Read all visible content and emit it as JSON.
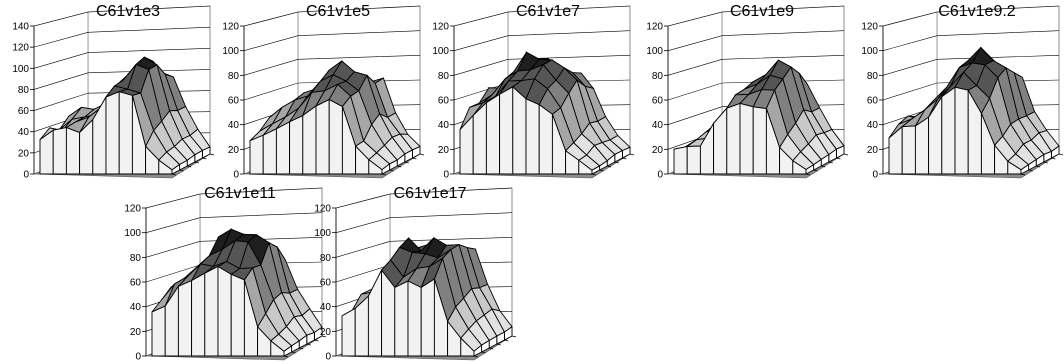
{
  "chart_data": [
    {
      "type": "surface",
      "title": "C61v1e3",
      "ylim": [
        0,
        140
      ],
      "yticks": [
        0,
        20,
        40,
        60,
        80,
        100,
        120,
        140
      ],
      "seed": 3,
      "profile": [
        52,
        60,
        64,
        72,
        90,
        112,
        120,
        114,
        96,
        74,
        60
      ]
    },
    {
      "type": "surface",
      "title": "C61v1e5",
      "ylim": [
        0,
        120
      ],
      "yticks": [
        0,
        20,
        40,
        60,
        80,
        100,
        120
      ],
      "seed": 5,
      "profile": [
        48,
        58,
        64,
        72,
        86,
        98,
        96,
        86,
        72,
        62,
        54
      ]
    },
    {
      "type": "surface",
      "title": "C61v1e7",
      "ylim": [
        0,
        120
      ],
      "yticks": [
        0,
        20,
        40,
        60,
        80,
        100,
        120
      ],
      "seed": 7,
      "profile": [
        68,
        80,
        92,
        104,
        108,
        104,
        94,
        80,
        66,
        56,
        48
      ]
    },
    {
      "type": "surface",
      "title": "C61v1e9",
      "ylim": [
        0,
        120
      ],
      "yticks": [
        0,
        20,
        40,
        60,
        80,
        100,
        120
      ],
      "seed": 9,
      "profile": [
        28,
        34,
        46,
        60,
        82,
        94,
        96,
        92,
        82,
        70,
        58
      ]
    },
    {
      "type": "surface",
      "title": "C61v1e9.2",
      "ylim": [
        0,
        120
      ],
      "yticks": [
        0,
        20,
        40,
        60,
        80,
        100,
        120
      ],
      "seed": 11,
      "profile": [
        48,
        56,
        66,
        82,
        100,
        112,
        104,
        90,
        76,
        64,
        56
      ]
    },
    {
      "type": "surface",
      "title": "C61v1e11",
      "ylim": [
        0,
        120
      ],
      "yticks": [
        0,
        20,
        40,
        60,
        80,
        100,
        120
      ],
      "seed": 13,
      "profile": [
        64,
        74,
        88,
        102,
        110,
        112,
        106,
        96,
        84,
        72,
        62
      ]
    },
    {
      "type": "surface",
      "title": "C61v1e17",
      "ylim": [
        0,
        120
      ],
      "yticks": [
        0,
        20,
        40,
        60,
        80,
        100,
        120
      ],
      "seed": 17,
      "profile": [
        50,
        62,
        80,
        106,
        96,
        104,
        98,
        106,
        94,
        78,
        64
      ]
    }
  ]
}
